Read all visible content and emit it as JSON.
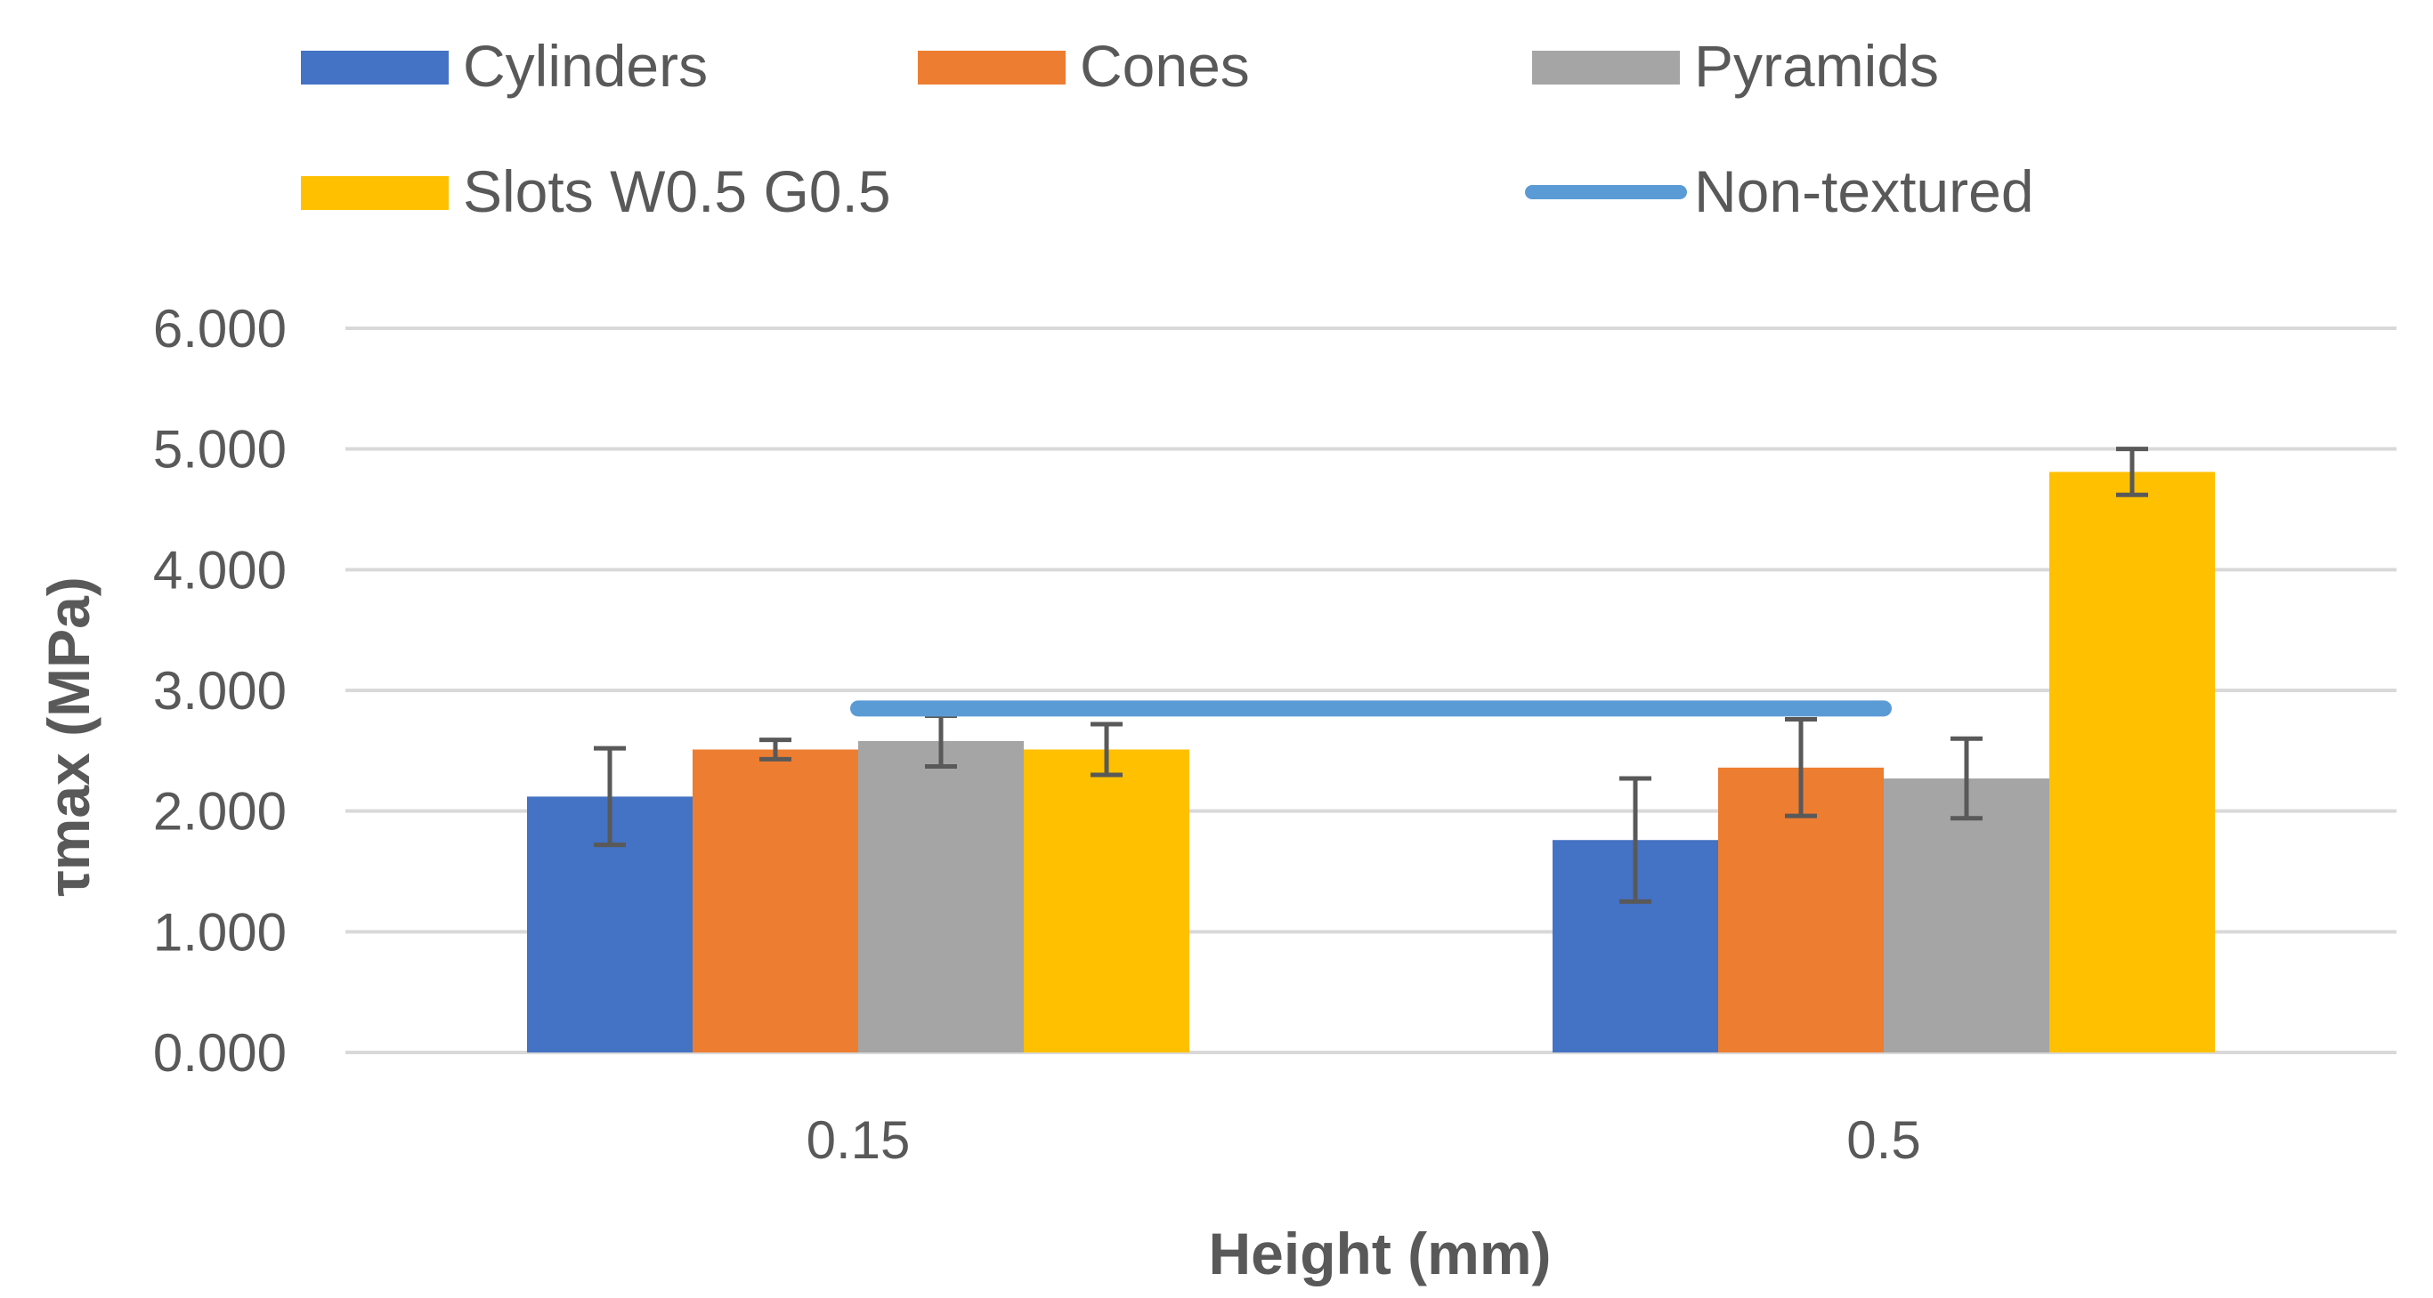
{
  "chart_data": {
    "type": "bar",
    "title": "",
    "xlabel": "Height (mm)",
    "ylabel": "τmax (MPa)",
    "ylim": [
      0,
      6
    ],
    "yticks": [
      0,
      1,
      2,
      3,
      4,
      5,
      6
    ],
    "ytick_labels": [
      "0.000",
      "1.000",
      "2.000",
      "3.000",
      "4.000",
      "5.000",
      "6.000"
    ],
    "categories": [
      "0.15",
      "0.5"
    ],
    "grid": true,
    "legend_position": "top",
    "series": [
      {
        "name": "Cylinders",
        "color": "#4472C4",
        "values": [
          2.12,
          1.76
        ],
        "errors": [
          0.4,
          0.51
        ]
      },
      {
        "name": "Cones",
        "color": "#ED7D31",
        "values": [
          2.51,
          2.36
        ],
        "errors": [
          0.08,
          0.4
        ]
      },
      {
        "name": "Pyramids",
        "color": "#A5A5A5",
        "values": [
          2.58,
          2.27
        ],
        "errors": [
          0.21,
          0.33
        ]
      },
      {
        "name": "Slots W0.5 G0.5",
        "color": "#FFC000",
        "values": [
          2.51,
          4.81
        ],
        "errors": [
          0.21,
          0.19
        ]
      }
    ],
    "reference_line": {
      "name": "Non-textured",
      "color": "#5B9BD5",
      "value": 2.85
    },
    "errorbar_color": "#595959"
  }
}
